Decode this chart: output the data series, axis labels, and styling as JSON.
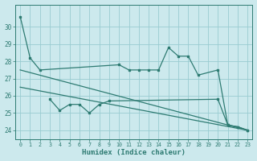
{
  "xlabel": "Humidex (Indice chaleur)",
  "background_color": "#cce9ed",
  "grid_color": "#99ccd1",
  "line_color": "#2e7b72",
  "xlim": [
    -0.5,
    23.5
  ],
  "ylim": [
    23.5,
    31.3
  ],
  "yticks": [
    24,
    25,
    26,
    27,
    28,
    29,
    30
  ],
  "xticks": [
    0,
    1,
    2,
    3,
    4,
    5,
    6,
    7,
    8,
    9,
    10,
    11,
    12,
    13,
    14,
    15,
    16,
    17,
    18,
    19,
    20,
    21,
    22,
    23
  ],
  "upper_jagged_x": [
    0,
    1,
    2,
    10,
    11,
    12,
    13,
    14,
    15,
    16,
    17,
    18,
    20,
    21,
    22,
    23
  ],
  "upper_jagged_y": [
    30.6,
    28.2,
    27.5,
    27.8,
    27.5,
    27.5,
    27.5,
    27.5,
    28.8,
    28.3,
    28.3,
    27.2,
    27.5,
    24.3,
    24.2,
    24.0
  ],
  "upper_trend_x": [
    0,
    23
  ],
  "upper_trend_y": [
    27.5,
    24.0
  ],
  "lower_jagged_x": [
    3,
    4,
    5,
    6,
    7,
    8,
    9,
    20,
    21,
    22,
    23
  ],
  "lower_jagged_y": [
    25.8,
    25.15,
    25.5,
    25.5,
    25.0,
    25.5,
    25.7,
    25.8,
    24.3,
    24.2,
    24.0
  ],
  "lower_trend_x": [
    0,
    23
  ],
  "lower_trend_y": [
    26.5,
    24.0
  ]
}
